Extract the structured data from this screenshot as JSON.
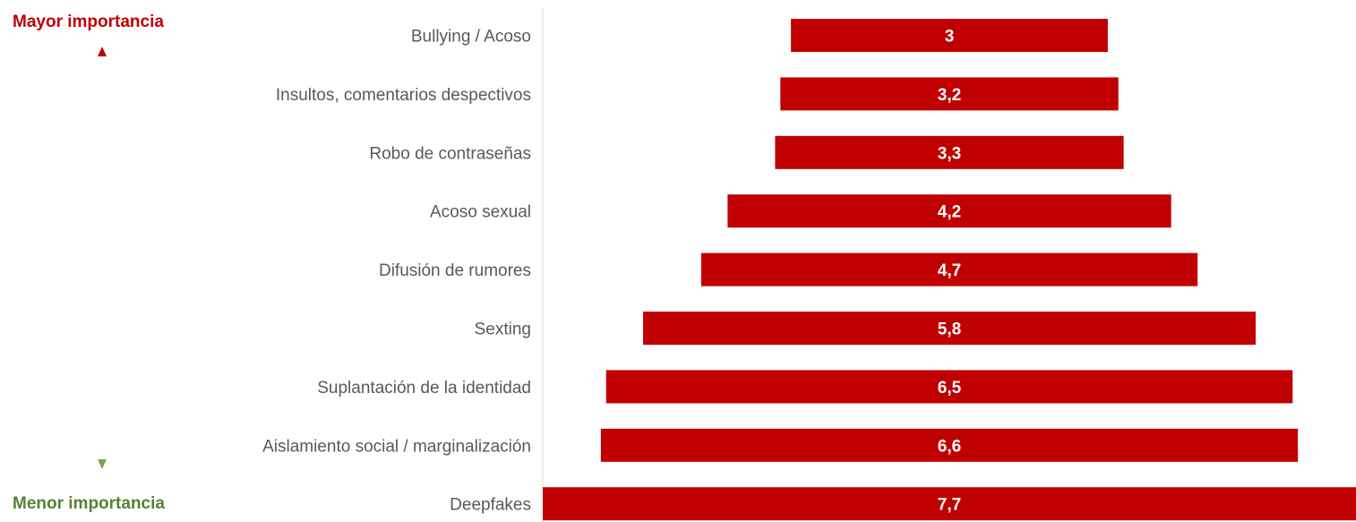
{
  "legend": {
    "top_label": "Mayor importancia",
    "bottom_label": "Menor importancia",
    "top_color": "#c00000",
    "bottom_color": "#548235"
  },
  "chart_data": {
    "type": "bar",
    "orientation": "horizontal",
    "layout": "centered-funnel",
    "bar_color": "#c00000",
    "categories": [
      "Bullying / Acoso",
      "Insultos, comentarios despectivos",
      "Robo de contraseñas",
      "Acoso sexual",
      "Difusión de rumores",
      "Sexting",
      "Suplantación de la identidad",
      "Aislamiento social / marginalización",
      "Deepfakes"
    ],
    "values": [
      3,
      3.2,
      3.3,
      4.2,
      4.7,
      5.8,
      6.5,
      6.6,
      7.7
    ],
    "value_labels": [
      "3",
      "3,2",
      "3,3",
      "4,2",
      "4,7",
      "5,8",
      "6,5",
      "6,6",
      "7,7"
    ],
    "xlim": [
      0,
      7.7
    ],
    "grid": false
  }
}
